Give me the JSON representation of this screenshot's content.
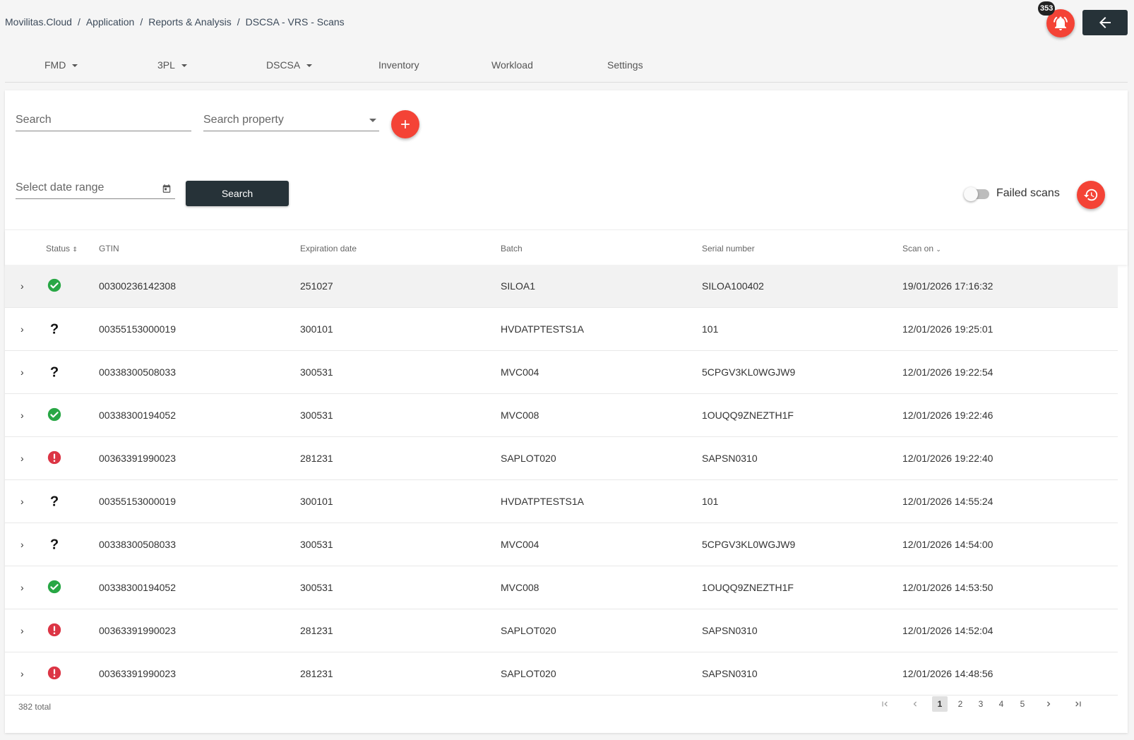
{
  "breadcrumb": [
    "Movilitas.Cloud",
    "Application",
    "Reports & Analysis",
    "DSCSA - VRS - Scans"
  ],
  "notifications": {
    "count": "353",
    "icon": "bell-alert-icon"
  },
  "nav": {
    "items": [
      {
        "label": "FMD",
        "dropdown": true
      },
      {
        "label": "3PL",
        "dropdown": true
      },
      {
        "label": "DSCSA",
        "dropdown": true
      },
      {
        "label": "Inventory",
        "dropdown": false
      },
      {
        "label": "Workload",
        "dropdown": false
      },
      {
        "label": "Settings",
        "dropdown": false
      }
    ]
  },
  "filters": {
    "search_placeholder": "Search",
    "property_placeholder": "Search property",
    "date_placeholder": "Select date range",
    "search_button": "Search",
    "failed_scans_label": "Failed scans",
    "failed_scans_on": false
  },
  "table": {
    "columns": [
      "Status",
      "GTIN",
      "Expiration date",
      "Batch",
      "Serial number",
      "Scan on"
    ],
    "rows": [
      {
        "status": "success",
        "gtin": "00300236142308",
        "exp": "251027",
        "batch": "SILOA1",
        "serial": "SILOA100402",
        "scan": "19/01/2026 17:16:32"
      },
      {
        "status": "unknown",
        "gtin": "00355153000019",
        "exp": "300101",
        "batch": "HVDATPTESTS1A",
        "serial": "101",
        "scan": "12/01/2026 19:25:01"
      },
      {
        "status": "unknown",
        "gtin": "00338300508033",
        "exp": "300531",
        "batch": "MVC004",
        "serial": "5CPGV3KL0WGJW9",
        "scan": "12/01/2026 19:22:54"
      },
      {
        "status": "success",
        "gtin": "00338300194052",
        "exp": "300531",
        "batch": "MVC008",
        "serial": "1OUQQ9ZNEZTH1F",
        "scan": "12/01/2026 19:22:46"
      },
      {
        "status": "error",
        "gtin": "00363391990023",
        "exp": "281231",
        "batch": "SAPLOT020",
        "serial": "SAPSN0310",
        "scan": "12/01/2026 19:22:40"
      },
      {
        "status": "unknown",
        "gtin": "00355153000019",
        "exp": "300101",
        "batch": "HVDATPTESTS1A",
        "serial": "101",
        "scan": "12/01/2026 14:55:24"
      },
      {
        "status": "unknown",
        "gtin": "00338300508033",
        "exp": "300531",
        "batch": "MVC004",
        "serial": "5CPGV3KL0WGJW9",
        "scan": "12/01/2026 14:54:00"
      },
      {
        "status": "success",
        "gtin": "00338300194052",
        "exp": "300531",
        "batch": "MVC008",
        "serial": "1OUQQ9ZNEZTH1F",
        "scan": "12/01/2026 14:53:50"
      },
      {
        "status": "error",
        "gtin": "00363391990023",
        "exp": "281231",
        "batch": "SAPLOT020",
        "serial": "SAPSN0310",
        "scan": "12/01/2026 14:52:04"
      },
      {
        "status": "error",
        "gtin": "00363391990023",
        "exp": "281231",
        "batch": "SAPLOT020",
        "serial": "SAPSN0310",
        "scan": "12/01/2026 14:48:56"
      }
    ]
  },
  "pagination": {
    "total_label": "382 total",
    "pages": [
      "1",
      "2",
      "3",
      "4",
      "5"
    ],
    "current": "1"
  },
  "colors": {
    "accent": "#f44336",
    "dark": "#263238",
    "success": "#28a745",
    "error": "#dc3545"
  }
}
